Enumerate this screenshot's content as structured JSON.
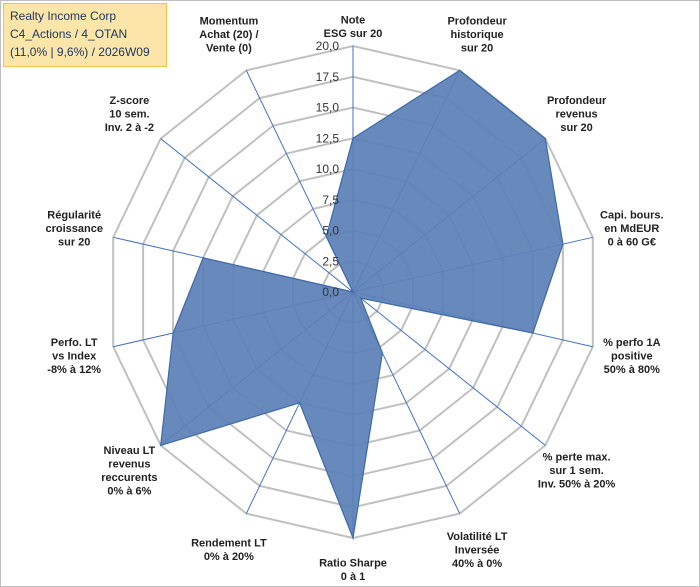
{
  "title_box": {
    "line1": "Realty Income Corp",
    "line2": "C4_Actions / 4_OTAN",
    "line3": "(11,0% | 9,6%) / 2026W09"
  },
  "colors": {
    "fill": "#5b7fb5",
    "stroke": "#3e6aa8",
    "grid": "#c0c0c0",
    "spoke": "#4472c4",
    "title_bg": "#fbe5a8"
  },
  "chart_data": {
    "type": "radar",
    "title": "Realty Income Corp",
    "rmin": 0,
    "rmax": 20,
    "ticks": [
      "0,0",
      "2,5",
      "5,0",
      "7,5",
      "10,0",
      "12,5",
      "15,0",
      "17,5",
      "20,0"
    ],
    "axes": [
      {
        "label": [
          "Note",
          "ESG sur 20"
        ],
        "value": 12.5
      },
      {
        "label": [
          "Profondeur",
          "historique",
          "sur 20"
        ],
        "value": 20
      },
      {
        "label": [
          "Profondeur",
          "revenus",
          "sur 20"
        ],
        "value": 20
      },
      {
        "label": [
          "Capi. bours.",
          "en MdEUR",
          "0 à 60 G€"
        ],
        "value": 17.5
      },
      {
        "label": [
          "% perfo 1A",
          "positive",
          "50% à 80%"
        ],
        "value": 15
      },
      {
        "label": [
          "% perte max.",
          "sur 1 sem.",
          "Inv. 50% à 20%"
        ],
        "value": 0.8
      },
      {
        "label": [
          "Volatilité LT",
          "Inversée",
          "40% à 0%"
        ],
        "value": 5.5
      },
      {
        "label": [
          "Ratio Sharpe",
          "0 à 1"
        ],
        "value": 20
      },
      {
        "label": [
          "Rendement LT",
          "0% à 20%"
        ],
        "value": 10
      },
      {
        "label": [
          "Niveau LT",
          "revenus",
          "reccurents",
          "0% à 6%"
        ],
        "value": 20
      },
      {
        "label": [
          "Perfo. LT",
          "vs Index",
          "-8% à 12%"
        ],
        "value": 15
      },
      {
        "label": [
          "Régularité",
          "croissance",
          "sur 20"
        ],
        "value": 12.5
      },
      {
        "label": [
          "Z-score",
          "10 sem.",
          "Inv. 2 à -2"
        ],
        "value": 0
      },
      {
        "label": [
          "Momentum",
          "Achat (20) /",
          "Vente (0)"
        ],
        "value": 5
      }
    ]
  }
}
